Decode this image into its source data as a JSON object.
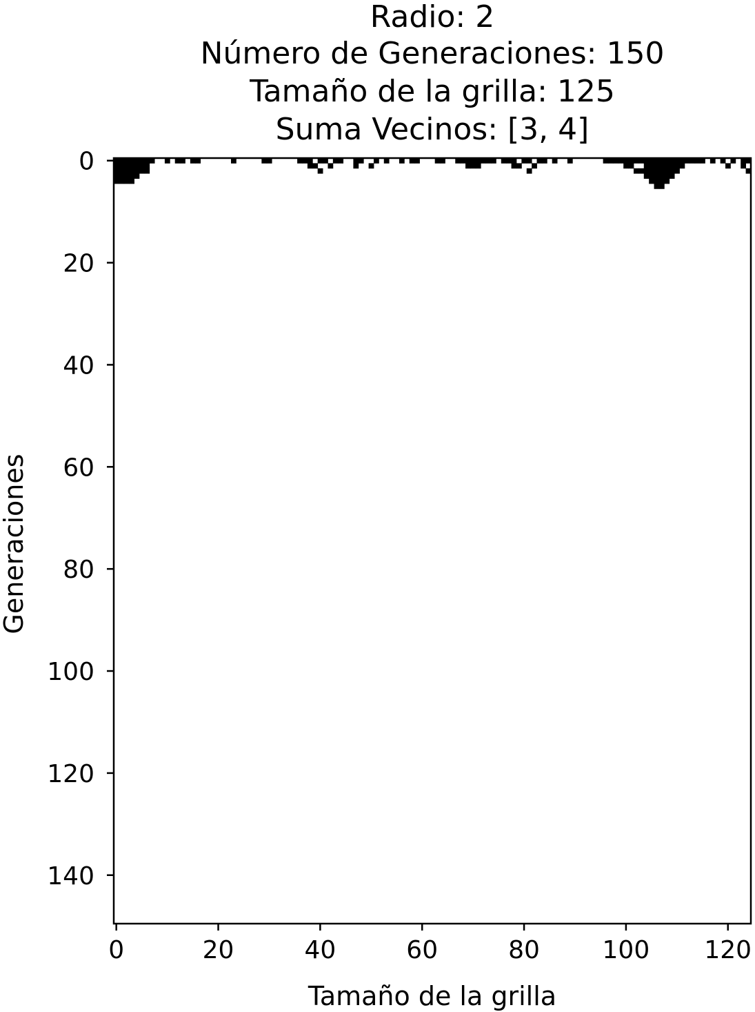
{
  "title_lines": [
    "Radio: 2",
    "Número de Generaciones: 150",
    "Tamaño de la grilla: 125",
    "Suma Vecinos: [3, 4]"
  ],
  "chart_data": {
    "type": "heatmap",
    "title": "Radio: 2\nNúmero de Generaciones: 150\nTamaño de la grilla: 125\nSuma Vecinos: [3, 4]",
    "xlabel": "Tamaño de la grilla",
    "ylabel": "Generaciones",
    "xlim": [
      -0.5,
      124.5
    ],
    "ylim": [
      149.5,
      -0.5
    ],
    "x_ticks": [
      0,
      20,
      40,
      60,
      80,
      100,
      120
    ],
    "y_ticks": [
      0,
      20,
      40,
      60,
      80,
      100,
      120,
      140
    ],
    "colormap": "binary",
    "colors": {
      "alive": "#000000",
      "dead": "#ffffff"
    },
    "grid_width": 125,
    "generations": 150,
    "alive_cells": [
      [
        0,
        0
      ],
      [
        0,
        1
      ],
      [
        0,
        2
      ],
      [
        0,
        3
      ],
      [
        0,
        4
      ],
      [
        0,
        5
      ],
      [
        0,
        6
      ],
      [
        0,
        7
      ],
      [
        0,
        10
      ],
      [
        0,
        12
      ],
      [
        0,
        13
      ],
      [
        0,
        15
      ],
      [
        0,
        16
      ],
      [
        0,
        23
      ],
      [
        0,
        29
      ],
      [
        0,
        30
      ],
      [
        0,
        36
      ],
      [
        0,
        37
      ],
      [
        0,
        38
      ],
      [
        0,
        40
      ],
      [
        0,
        41
      ],
      [
        0,
        43
      ],
      [
        0,
        44
      ],
      [
        0,
        47
      ],
      [
        0,
        48
      ],
      [
        0,
        51
      ],
      [
        0,
        53
      ],
      [
        0,
        56
      ],
      [
        0,
        58
      ],
      [
        0,
        59
      ],
      [
        0,
        63
      ],
      [
        0,
        64
      ],
      [
        0,
        67
      ],
      [
        0,
        68
      ],
      [
        0,
        69
      ],
      [
        0,
        70
      ],
      [
        0,
        71
      ],
      [
        0,
        72
      ],
      [
        0,
        73
      ],
      [
        0,
        74
      ],
      [
        0,
        76
      ],
      [
        0,
        77
      ],
      [
        0,
        78
      ],
      [
        0,
        80
      ],
      [
        0,
        81
      ],
      [
        0,
        83
      ],
      [
        0,
        84
      ],
      [
        0,
        86
      ],
      [
        0,
        89
      ],
      [
        0,
        96
      ],
      [
        0,
        97
      ],
      [
        0,
        98
      ],
      [
        0,
        99
      ],
      [
        0,
        100
      ],
      [
        0,
        101
      ],
      [
        0,
        102
      ],
      [
        0,
        103
      ],
      [
        0,
        104
      ],
      [
        0,
        105
      ],
      [
        0,
        106
      ],
      [
        0,
        107
      ],
      [
        0,
        108
      ],
      [
        0,
        109
      ],
      [
        0,
        110
      ],
      [
        0,
        111
      ],
      [
        0,
        112
      ],
      [
        0,
        113
      ],
      [
        0,
        114
      ],
      [
        0,
        115
      ],
      [
        0,
        117
      ],
      [
        0,
        119
      ],
      [
        0,
        121
      ],
      [
        0,
        123
      ],
      [
        0,
        124
      ],
      [
        1,
        0
      ],
      [
        1,
        1
      ],
      [
        1,
        2
      ],
      [
        1,
        3
      ],
      [
        1,
        4
      ],
      [
        1,
        5
      ],
      [
        1,
        6
      ],
      [
        1,
        38
      ],
      [
        1,
        39
      ],
      [
        1,
        42
      ],
      [
        1,
        47
      ],
      [
        1,
        50
      ],
      [
        1,
        69
      ],
      [
        1,
        70
      ],
      [
        1,
        71
      ],
      [
        1,
        78
      ],
      [
        1,
        79
      ],
      [
        1,
        82
      ],
      [
        1,
        100
      ],
      [
        1,
        101
      ],
      [
        1,
        104
      ],
      [
        1,
        105
      ],
      [
        1,
        106
      ],
      [
        1,
        107
      ],
      [
        1,
        108
      ],
      [
        1,
        109
      ],
      [
        1,
        110
      ],
      [
        1,
        111
      ],
      [
        1,
        120
      ],
      [
        1,
        123
      ],
      [
        2,
        0
      ],
      [
        2,
        1
      ],
      [
        2,
        2
      ],
      [
        2,
        3
      ],
      [
        2,
        4
      ],
      [
        2,
        5
      ],
      [
        2,
        6
      ],
      [
        2,
        40
      ],
      [
        2,
        81
      ],
      [
        2,
        102
      ],
      [
        2,
        103
      ],
      [
        2,
        104
      ],
      [
        2,
        105
      ],
      [
        2,
        106
      ],
      [
        2,
        107
      ],
      [
        2,
        108
      ],
      [
        2,
        109
      ],
      [
        2,
        110
      ],
      [
        2,
        124
      ],
      [
        3,
        0
      ],
      [
        3,
        1
      ],
      [
        3,
        2
      ],
      [
        3,
        3
      ],
      [
        3,
        4
      ],
      [
        3,
        104
      ],
      [
        3,
        105
      ],
      [
        3,
        106
      ],
      [
        3,
        107
      ],
      [
        3,
        108
      ],
      [
        3,
        109
      ],
      [
        4,
        0
      ],
      [
        4,
        1
      ],
      [
        4,
        2
      ],
      [
        4,
        3
      ],
      [
        4,
        105
      ],
      [
        4,
        106
      ],
      [
        4,
        107
      ],
      [
        4,
        108
      ],
      [
        5,
        106
      ],
      [
        5,
        107
      ]
    ]
  }
}
